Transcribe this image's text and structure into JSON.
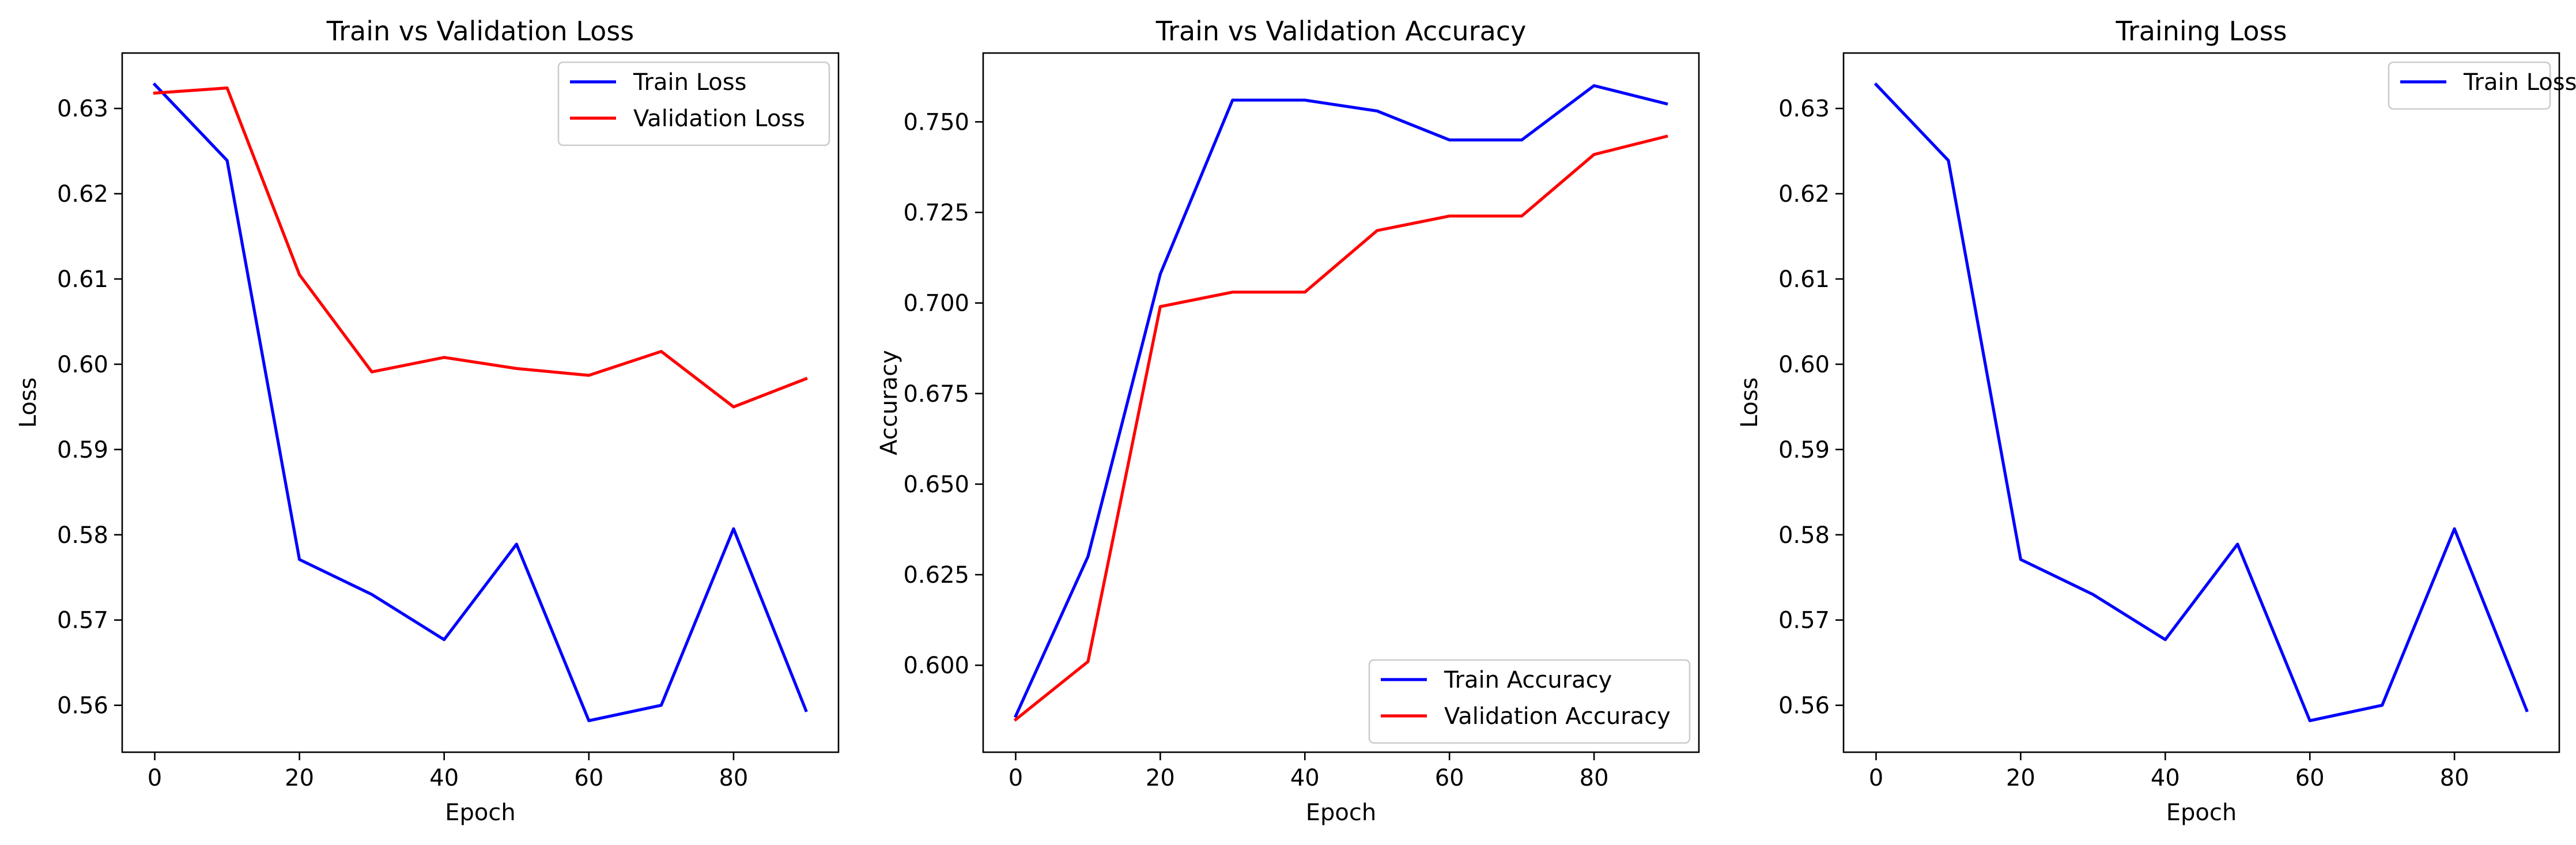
{
  "chart_data": [
    {
      "type": "line",
      "title": "Train vs Validation Loss",
      "xlabel": "Epoch",
      "ylabel": "Loss",
      "xlim": [
        -4.5,
        94.5
      ],
      "ylim": [
        0.5545,
        0.6365
      ],
      "xticks": [
        0,
        20,
        40,
        60,
        80
      ],
      "yticks": [
        0.56,
        0.57,
        0.58,
        0.59,
        0.6,
        0.61,
        0.62,
        0.63
      ],
      "ytick_labels": [
        "0.56",
        "0.57",
        "0.58",
        "0.59",
        "0.60",
        "0.61",
        "0.62",
        "0.63"
      ],
      "grid": false,
      "legend_position": "upper right",
      "x": [
        0,
        10,
        20,
        30,
        40,
        50,
        60,
        70,
        80,
        90
      ],
      "series": [
        {
          "name": "Train Loss",
          "color": "#0000ff",
          "values": [
            0.6328,
            0.6239,
            0.5771,
            0.573,
            0.5677,
            0.5789,
            0.5582,
            0.56,
            0.5807,
            0.5594
          ]
        },
        {
          "name": "Validation Loss",
          "color": "#ff0000",
          "values": [
            0.6318,
            0.6324,
            0.6105,
            0.5991,
            0.6008,
            0.5995,
            0.5987,
            0.6015,
            0.595,
            0.5983
          ]
        }
      ]
    },
    {
      "type": "line",
      "title": "Train vs Validation Accuracy",
      "xlabel": "Epoch",
      "ylabel": "Accuracy",
      "xlim": [
        -4.5,
        94.5
      ],
      "ylim": [
        0.576,
        0.769
      ],
      "xticks": [
        0,
        20,
        40,
        60,
        80
      ],
      "yticks": [
        0.6,
        0.625,
        0.65,
        0.675,
        0.7,
        0.725,
        0.75
      ],
      "ytick_labels": [
        "0.600",
        "0.625",
        "0.650",
        "0.675",
        "0.700",
        "0.725",
        "0.750"
      ],
      "grid": false,
      "legend_position": "lower right",
      "x": [
        0,
        10,
        20,
        30,
        40,
        50,
        60,
        70,
        80,
        90
      ],
      "series": [
        {
          "name": "Train Accuracy",
          "color": "#0000ff",
          "values": [
            0.586,
            0.63,
            0.708,
            0.756,
            0.756,
            0.753,
            0.745,
            0.745,
            0.76,
            0.755
          ]
        },
        {
          "name": "Validation Accuracy",
          "color": "#ff0000",
          "values": [
            0.585,
            0.601,
            0.699,
            0.703,
            0.703,
            0.72,
            0.724,
            0.724,
            0.741,
            0.746
          ]
        }
      ]
    },
    {
      "type": "line",
      "title": "Training Loss",
      "xlabel": "Epoch",
      "ylabel": "Loss",
      "xlim": [
        -4.5,
        94.5
      ],
      "ylim": [
        0.5545,
        0.6365
      ],
      "xticks": [
        0,
        20,
        40,
        60,
        80
      ],
      "yticks": [
        0.56,
        0.57,
        0.58,
        0.59,
        0.6,
        0.61,
        0.62,
        0.63
      ],
      "ytick_labels": [
        "0.56",
        "0.57",
        "0.58",
        "0.59",
        "0.60",
        "0.61",
        "0.62",
        "0.63"
      ],
      "grid": false,
      "legend_position": "upper right",
      "x": [
        0,
        10,
        20,
        30,
        40,
        50,
        60,
        70,
        80,
        90
      ],
      "series": [
        {
          "name": "Train Loss",
          "color": "#0000ff",
          "values": [
            0.6328,
            0.6239,
            0.5771,
            0.573,
            0.5677,
            0.5789,
            0.5582,
            0.56,
            0.5807,
            0.5594
          ]
        }
      ]
    }
  ]
}
